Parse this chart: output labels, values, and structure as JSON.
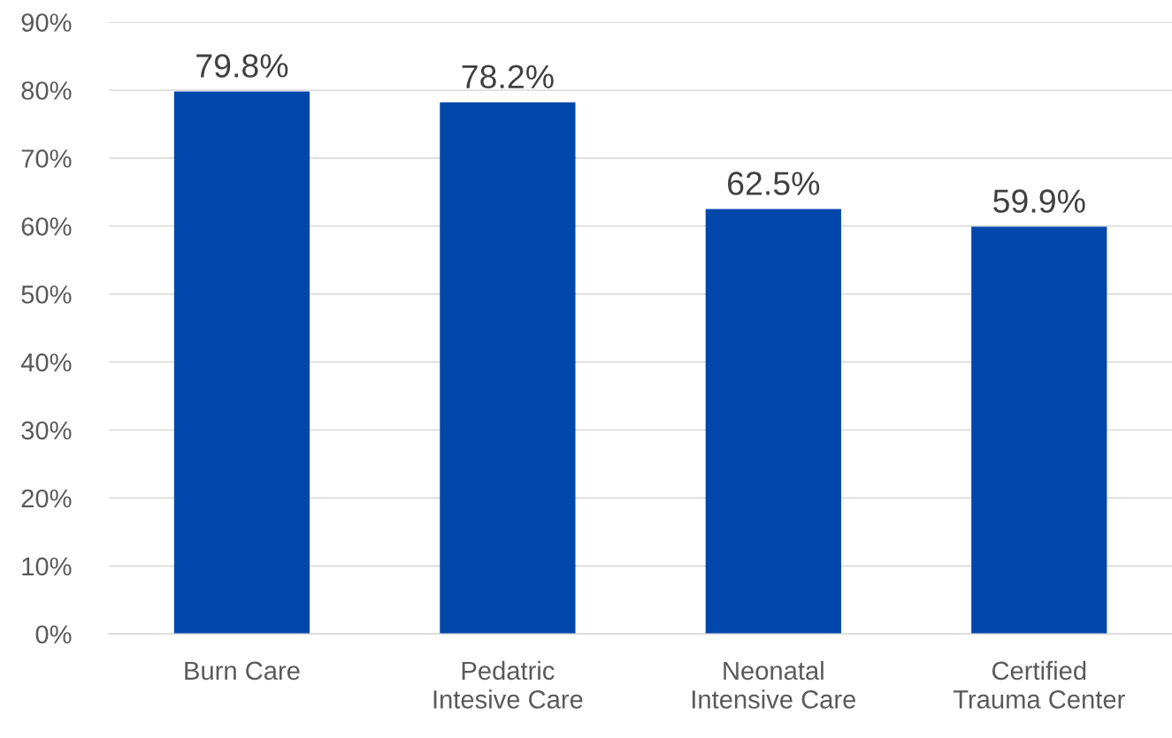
{
  "chart_data": {
    "type": "bar",
    "categories": [
      "Burn Care",
      "Pedatric\nIntesive Care",
      "Neonatal\nIntensive Care",
      "Certified\nTrauma Center"
    ],
    "values": [
      79.8,
      78.2,
      62.5,
      59.9
    ],
    "value_labels": [
      "79.8%",
      "78.2%",
      "62.5%",
      "59.9%"
    ],
    "color": "#0047ab",
    "ylim": [
      0,
      90
    ],
    "yticks": [
      {
        "value": 0,
        "label": "0%"
      },
      {
        "value": 10,
        "label": "10%"
      },
      {
        "value": 20,
        "label": "20%"
      },
      {
        "value": 30,
        "label": "30%"
      },
      {
        "value": 40,
        "label": "40%"
      },
      {
        "value": 50,
        "label": "50%"
      },
      {
        "value": 60,
        "label": "60%"
      },
      {
        "value": 70,
        "label": "70%"
      },
      {
        "value": 80,
        "label": "80%"
      },
      {
        "value": 90,
        "label": "90%"
      }
    ],
    "grid": "y"
  }
}
